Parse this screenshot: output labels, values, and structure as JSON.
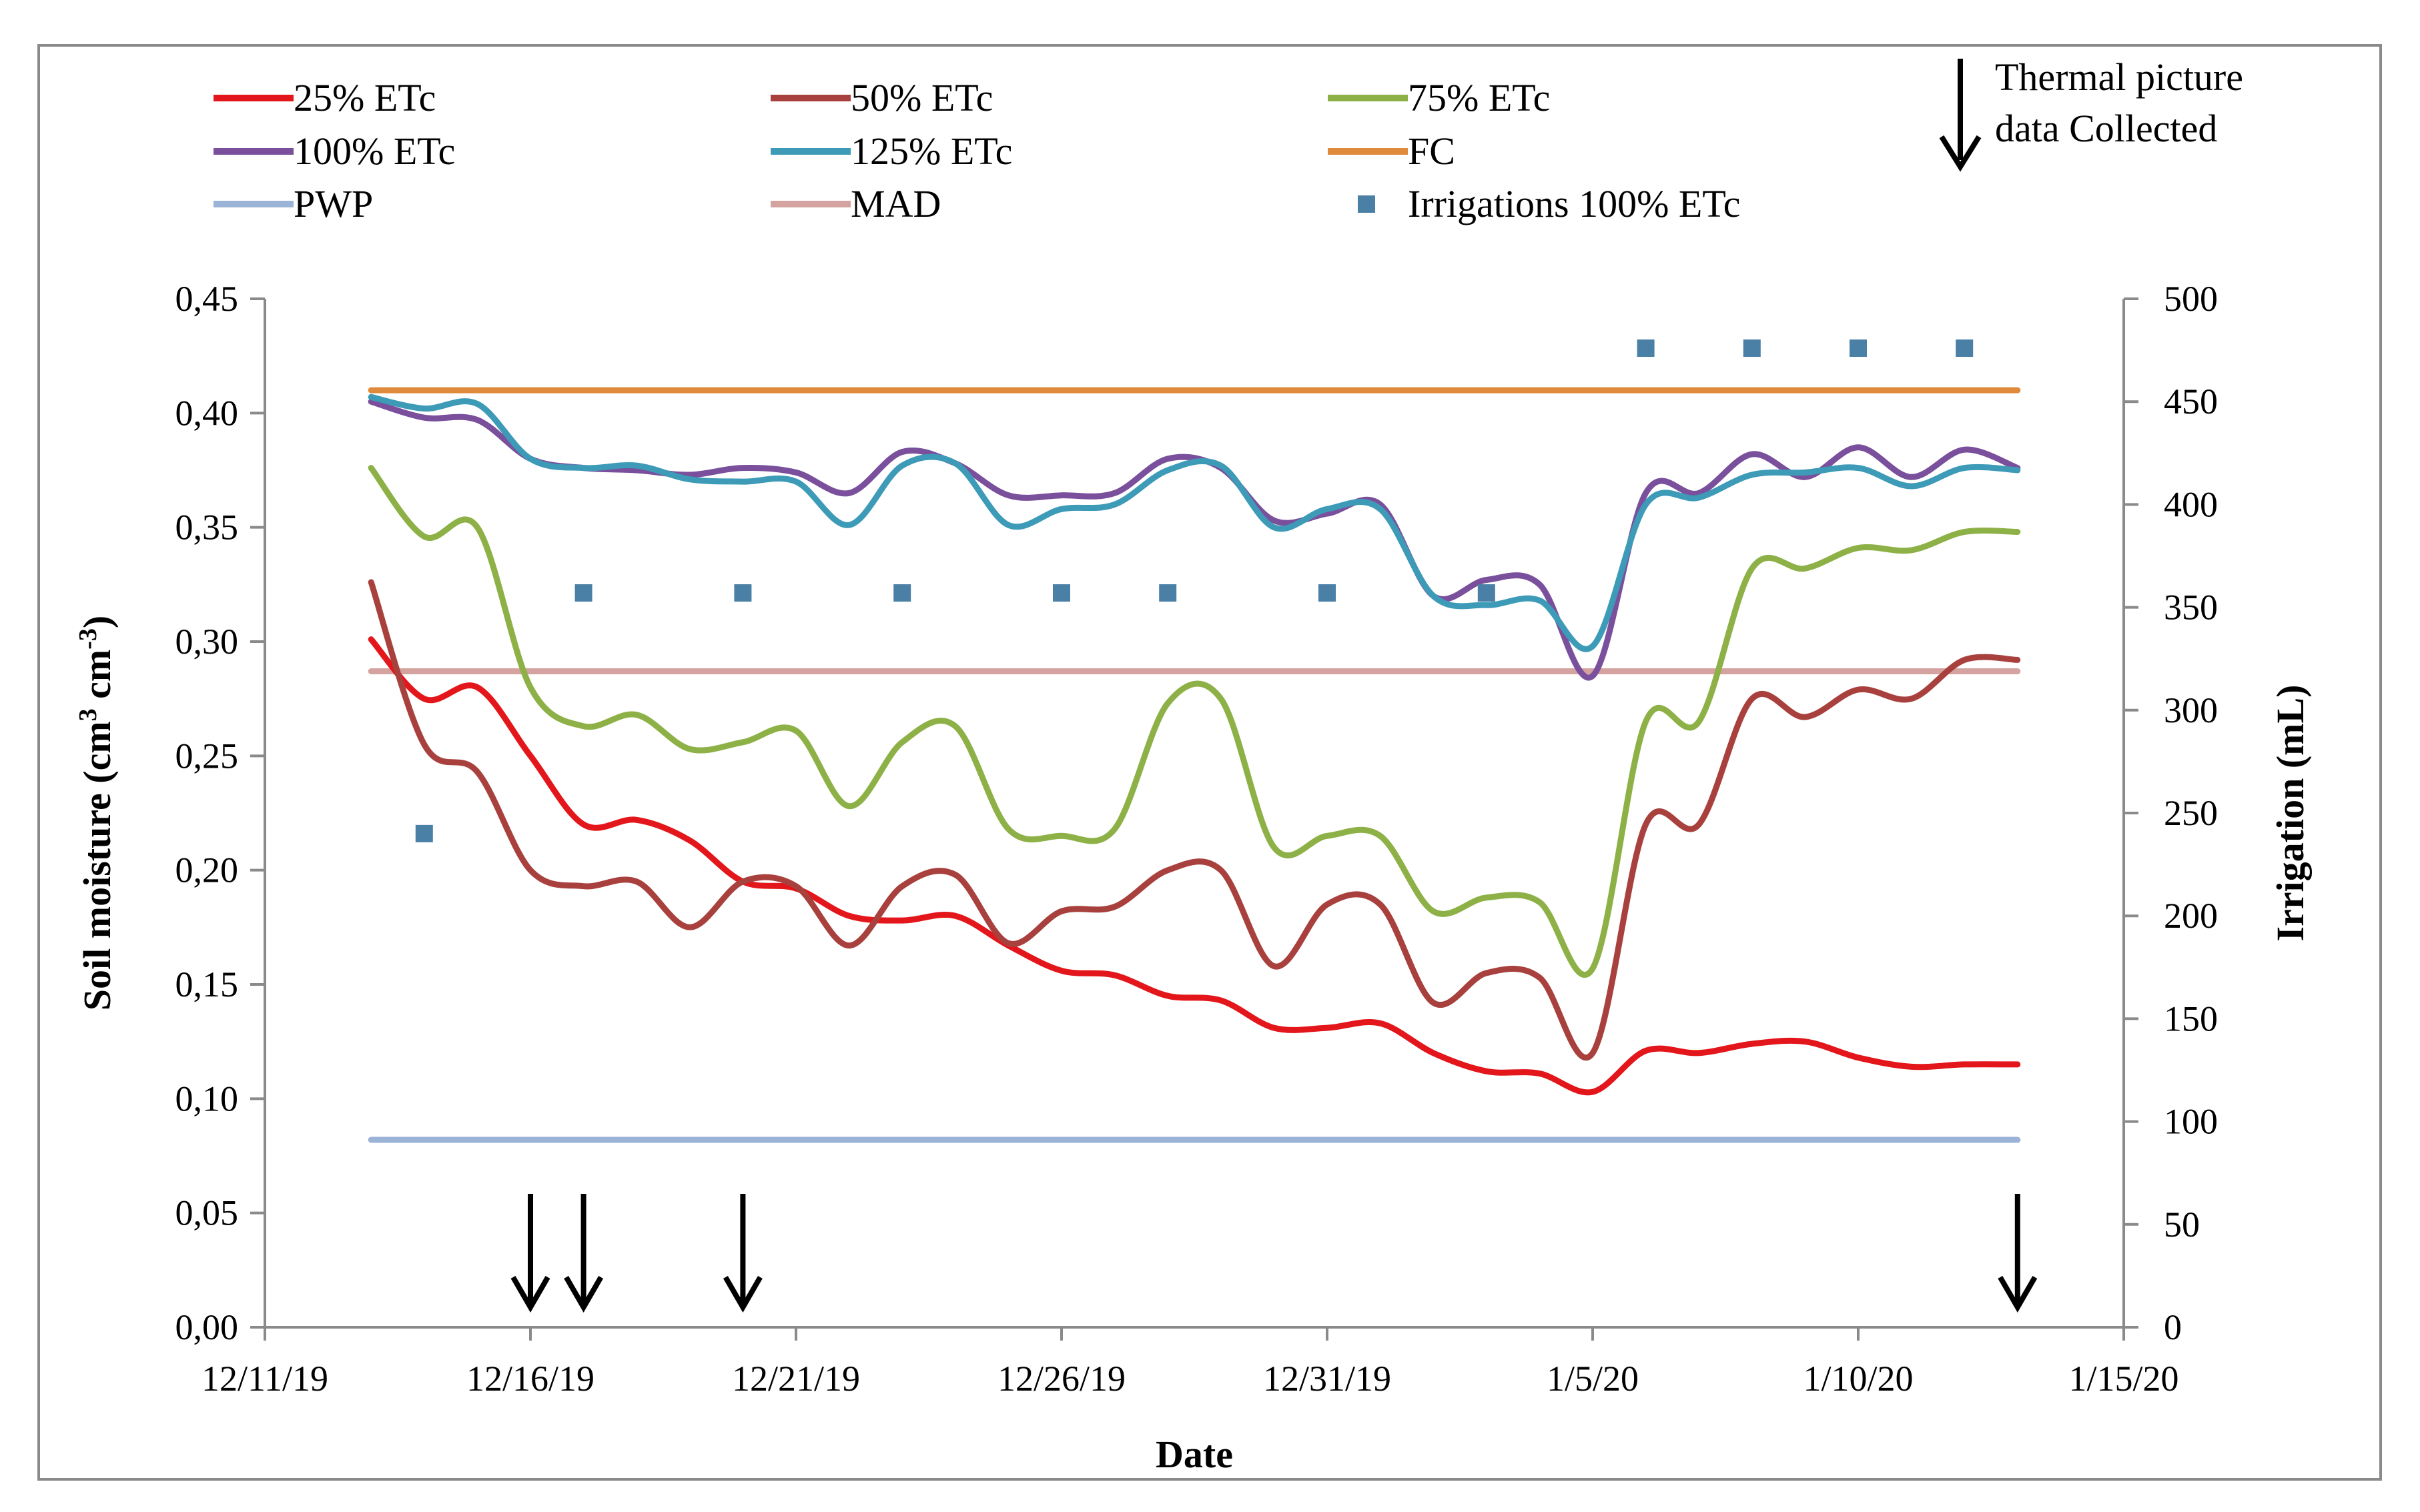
{
  "chart_data": {
    "type": "line",
    "title": "",
    "xlabel": "Date",
    "ylabel": "Soil moisture (cm³ cm⁻³)",
    "ylabel_base": "Soil moisture (cm",
    "ylabel_exp1": "3",
    "ylabel_mid": " cm",
    "ylabel_exp2": "-3",
    "ylabel_end": ")",
    "y2label": "Irrigation (mL)",
    "xlim": [
      "12/11/19",
      "1/15/20"
    ],
    "ylim": [
      0,
      0.45
    ],
    "y2lim": [
      0,
      500
    ],
    "grid": false,
    "legend_position": "top",
    "x_tick_labels": [
      "12/11/19",
      "12/16/19",
      "12/21/19",
      "12/26/19",
      "12/31/19",
      "1/5/20",
      "1/10/20",
      "1/15/20"
    ],
    "y_tick_labels": [
      "0,00",
      "0,05",
      "0,10",
      "0,15",
      "0,20",
      "0,25",
      "0,30",
      "0,35",
      "0,40",
      "0,45"
    ],
    "y2_tick_labels": [
      "0",
      "50",
      "100",
      "150",
      "200",
      "250",
      "300",
      "350",
      "400",
      "450",
      "500"
    ],
    "series": [
      {
        "name": "25% ETc",
        "color": "#e3161b",
        "x": [
          "12/13/19",
          "12/14/19",
          "12/15/19",
          "12/16/19",
          "12/17/19",
          "12/18/19",
          "12/19/19",
          "12/20/19",
          "12/21/19",
          "12/22/19",
          "12/23/19",
          "12/24/19",
          "12/25/19",
          "12/26/19",
          "12/27/19",
          "12/28/19",
          "12/29/19",
          "12/30/19",
          "12/31/19",
          "1/1/20",
          "1/2/20",
          "1/3/20",
          "1/4/20",
          "1/5/20",
          "1/6/20",
          "1/7/20",
          "1/8/20",
          "1/9/20",
          "1/10/20",
          "1/11/20",
          "1/12/20",
          "1/13/20"
        ],
        "y": [
          0.301,
          0.275,
          0.28,
          0.25,
          0.22,
          0.222,
          0.213,
          0.195,
          0.192,
          0.18,
          0.178,
          0.18,
          0.167,
          0.156,
          0.154,
          0.145,
          0.143,
          0.131,
          0.131,
          0.133,
          0.12,
          0.112,
          0.111,
          0.103,
          0.121,
          0.12,
          0.124,
          0.125,
          0.118,
          0.114,
          0.115,
          0.115
        ]
      },
      {
        "name": "50% ETc",
        "color": "#a8413e",
        "x": [
          "12/13/19",
          "12/14/19",
          "12/15/19",
          "12/16/19",
          "12/17/19",
          "12/18/19",
          "12/19/19",
          "12/20/19",
          "12/21/19",
          "12/22/19",
          "12/23/19",
          "12/24/19",
          "12/25/19",
          "12/26/19",
          "12/27/19",
          "12/28/19",
          "12/29/19",
          "12/30/19",
          "12/31/19",
          "1/1/20",
          "1/2/20",
          "1/3/20",
          "1/4/20",
          "1/5/20",
          "1/6/20",
          "1/7/20",
          "1/8/20",
          "1/9/20",
          "1/10/20",
          "1/11/20",
          "1/12/20",
          "1/13/20"
        ],
        "y": [
          0.326,
          0.255,
          0.243,
          0.2,
          0.193,
          0.195,
          0.175,
          0.195,
          0.193,
          0.167,
          0.193,
          0.198,
          0.168,
          0.182,
          0.184,
          0.2,
          0.2,
          0.158,
          0.185,
          0.185,
          0.142,
          0.155,
          0.153,
          0.12,
          0.22,
          0.22,
          0.275,
          0.267,
          0.279,
          0.275,
          0.292,
          0.292
        ]
      },
      {
        "name": "75% ETc",
        "color": "#8db146",
        "x": [
          "12/13/19",
          "12/14/19",
          "12/15/19",
          "12/16/19",
          "12/17/19",
          "12/18/19",
          "12/19/19",
          "12/20/19",
          "12/21/19",
          "12/22/19",
          "12/23/19",
          "12/24/19",
          "12/25/19",
          "12/26/19",
          "12/27/19",
          "12/28/19",
          "12/29/19",
          "12/30/19",
          "12/31/19",
          "1/1/20",
          "1/2/20",
          "1/3/20",
          "1/4/20",
          "1/5/20",
          "1/6/20",
          "1/7/20",
          "1/8/20",
          "1/9/20",
          "1/10/20",
          "1/11/20",
          "1/12/20",
          "1/13/20"
        ],
        "y": [
          0.376,
          0.346,
          0.35,
          0.28,
          0.263,
          0.268,
          0.253,
          0.256,
          0.261,
          0.228,
          0.256,
          0.263,
          0.218,
          0.215,
          0.218,
          0.273,
          0.275,
          0.21,
          0.215,
          0.215,
          0.182,
          0.188,
          0.186,
          0.157,
          0.265,
          0.265,
          0.332,
          0.332,
          0.341,
          0.34,
          0.348,
          0.348
        ]
      },
      {
        "name": "100% ETc",
        "color": "#7a4f9c",
        "x": [
          "12/13/19",
          "12/14/19",
          "12/15/19",
          "12/16/19",
          "12/17/19",
          "12/18/19",
          "12/19/19",
          "12/20/19",
          "12/21/19",
          "12/22/19",
          "12/23/19",
          "12/24/19",
          "12/25/19",
          "12/26/19",
          "12/27/19",
          "12/28/19",
          "12/29/19",
          "12/30/19",
          "12/31/19",
          "1/1/20",
          "1/2/20",
          "1/3/20",
          "1/4/20",
          "1/5/20",
          "1/6/20",
          "1/7/20",
          "1/8/20",
          "1/9/20",
          "1/10/20",
          "1/11/20",
          "1/12/20",
          "1/13/20"
        ],
        "y": [
          0.405,
          0.398,
          0.397,
          0.38,
          0.376,
          0.375,
          0.373,
          0.376,
          0.374,
          0.365,
          0.383,
          0.378,
          0.364,
          0.364,
          0.365,
          0.38,
          0.376,
          0.353,
          0.356,
          0.36,
          0.32,
          0.327,
          0.325,
          0.285,
          0.365,
          0.365,
          0.382,
          0.372,
          0.385,
          0.372,
          0.384,
          0.376
        ]
      },
      {
        "name": "125% ETc",
        "color": "#3d9bb8",
        "x": [
          "12/13/19",
          "12/14/19",
          "12/15/19",
          "12/16/19",
          "12/17/19",
          "12/18/19",
          "12/19/19",
          "12/20/19",
          "12/21/19",
          "12/22/19",
          "12/23/19",
          "12/24/19",
          "12/25/19",
          "12/26/19",
          "12/27/19",
          "12/28/19",
          "12/29/19",
          "12/30/19",
          "12/31/19",
          "1/1/20",
          "1/2/20",
          "1/3/20",
          "1/4/20",
          "1/5/20",
          "1/6/20",
          "1/7/20",
          "1/8/20",
          "1/9/20",
          "1/10/20",
          "1/11/20",
          "1/12/20",
          "1/13/20"
        ],
        "y": [
          0.407,
          0.402,
          0.404,
          0.38,
          0.376,
          0.377,
          0.371,
          0.37,
          0.37,
          0.351,
          0.377,
          0.378,
          0.351,
          0.358,
          0.36,
          0.375,
          0.377,
          0.35,
          0.358,
          0.358,
          0.32,
          0.316,
          0.318,
          0.298,
          0.36,
          0.363,
          0.373,
          0.374,
          0.376,
          0.368,
          0.376,
          0.375
        ]
      },
      {
        "name": "FC",
        "color": "#e08a3c",
        "x": [
          "12/13/19",
          "1/13/20"
        ],
        "y": [
          0.41,
          0.41
        ]
      },
      {
        "name": "PWP",
        "color": "#9bb3d6",
        "x": [
          "12/13/19",
          "1/13/20"
        ],
        "y": [
          0.082,
          0.082
        ]
      },
      {
        "name": "MAD",
        "color": "#d4a3a0",
        "x": [
          "12/13/19",
          "1/13/20"
        ],
        "y": [
          0.287,
          0.287
        ]
      },
      {
        "name": "Irrigations 100% ETc",
        "color": "#4a7fa6",
        "type": "scatter",
        "axis": "right",
        "x": [
          "12/14/19",
          "12/17/19",
          "12/20/19",
          "12/23/19",
          "12/26/19",
          "12/28/19",
          "12/31/19",
          "1/3/20",
          "1/6/20",
          "1/8/20",
          "1/10/20",
          "1/12/20"
        ],
        "y": [
          240,
          357,
          357,
          357,
          357,
          357,
          357,
          357,
          476,
          476,
          476,
          476
        ]
      }
    ],
    "annotations": [
      {
        "text": "Thermal picture data Collected",
        "line1": "Thermal picture",
        "line2": "data Collected"
      }
    ],
    "thermal_pictures": [
      "12/16/19",
      "12/17/19",
      "12/20/19",
      "1/13/20"
    ]
  }
}
